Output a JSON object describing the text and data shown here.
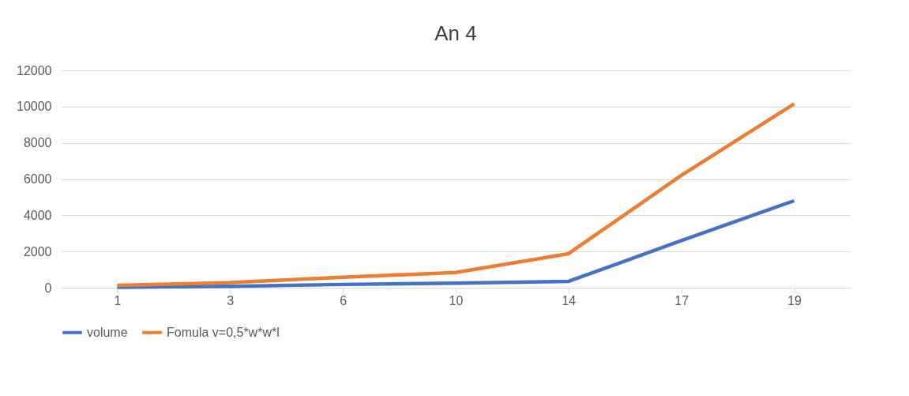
{
  "chart_data": {
    "type": "line",
    "title": "An 4",
    "categories": [
      "1",
      "3",
      "6",
      "10",
      "14",
      "17",
      "19"
    ],
    "series": [
      {
        "name": "volume",
        "color": "#4472c4",
        "values": [
          20,
          80,
          180,
          250,
          350,
          2600,
          4800
        ]
      },
      {
        "name": "Fomula  v=0,5*w*w*l",
        "color": "#ed7d31",
        "values": [
          130,
          280,
          580,
          840,
          1880,
          6200,
          10150
        ]
      }
    ],
    "ylim": [
      0,
      12000
    ],
    "yticks": [
      0,
      2000,
      4000,
      6000,
      8000,
      10000,
      12000
    ],
    "grid": "y",
    "legend": "bottom",
    "marker": "none",
    "line_style": "solid"
  }
}
